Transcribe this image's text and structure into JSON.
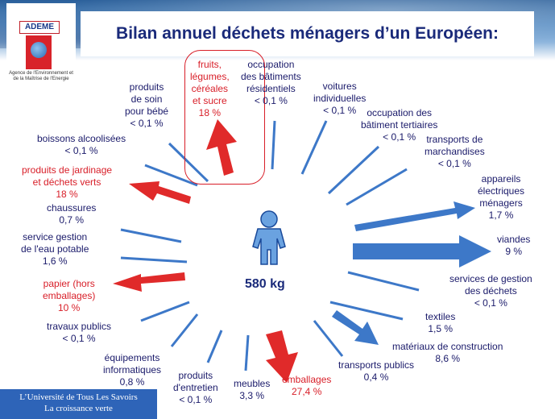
{
  "header": {
    "title": "Bilan annuel déchets ménagers d’un Européen:"
  },
  "logo": {
    "brand": "ADEME",
    "subtitle": "Agence de l'Environnement et de la Maîtrise de l'Energie"
  },
  "center": {
    "total": "580 kg"
  },
  "footer": {
    "line1": "L’Université de Tous Les Savoirs",
    "line2": "La croissance verte"
  },
  "colors": {
    "blue_arrow": "#3d78c8",
    "red_arrow": "#e02a2a",
    "title": "#1a2a7a",
    "red_text": "#d81e28"
  },
  "icons": {
    "person": "person-icon"
  },
  "items": [
    {
      "lines": [
        "fruits,",
        "légumes,",
        "céréales",
        "et sucre",
        "18 %"
      ],
      "color": "red"
    },
    {
      "lines": [
        "occupation",
        "des bâtiments",
        "résidentiels",
        "< 0,1 %"
      ],
      "color": "blue"
    },
    {
      "lines": [
        "voitures",
        "individuelles",
        "< 0,1 %"
      ],
      "color": "blue"
    },
    {
      "lines": [
        "occupation des",
        "bâtiment tertiaires",
        "< 0,1 %"
      ],
      "color": "blue"
    },
    {
      "lines": [
        "transports de",
        "marchandises",
        "< 0,1 %"
      ],
      "color": "blue"
    },
    {
      "lines": [
        "appareils",
        "électriques",
        "ménagers",
        "1,7 %"
      ],
      "color": "blue"
    },
    {
      "lines": [
        "viandes",
        "9 %"
      ],
      "color": "blue"
    },
    {
      "lines": [
        "services de gestion",
        "des déchets",
        "< 0,1 %"
      ],
      "color": "blue"
    },
    {
      "lines": [
        "textiles",
        "1,5 %"
      ],
      "color": "blue"
    },
    {
      "lines": [
        "matériaux de construction",
        "8,6 %"
      ],
      "color": "blue"
    },
    {
      "lines": [
        "transports publics",
        "0,4 %"
      ],
      "color": "blue"
    },
    {
      "lines": [
        "emballages",
        "27,4 %"
      ],
      "color": "red"
    },
    {
      "lines": [
        "meubles",
        "3,3 %"
      ],
      "color": "blue"
    },
    {
      "lines": [
        "produits",
        "d'entretien",
        "< 0,1 %"
      ],
      "color": "blue"
    },
    {
      "lines": [
        "équipements",
        "informatiques",
        "0,8 %"
      ],
      "color": "blue"
    },
    {
      "lines": [
        "travaux publics",
        "< 0,1 %"
      ],
      "color": "blue"
    },
    {
      "lines": [
        "papier (hors",
        "emballages)",
        "10 %"
      ],
      "color": "red"
    },
    {
      "lines": [
        "service gestion",
        "de l'eau potable",
        "1,6 %"
      ],
      "color": "blue"
    },
    {
      "lines": [
        "chaussures",
        "0,7 %"
      ],
      "color": "blue"
    },
    {
      "lines": [
        "produits de jardinage",
        "et déchets verts",
        "18 %"
      ],
      "color": "red"
    },
    {
      "lines": [
        "boissons alcoolisées",
        "< 0,1 %"
      ],
      "color": "blue"
    },
    {
      "lines": [
        "produits",
        "de soin",
        "pour bébé",
        "< 0,1 %"
      ],
      "color": "blue"
    }
  ]
}
